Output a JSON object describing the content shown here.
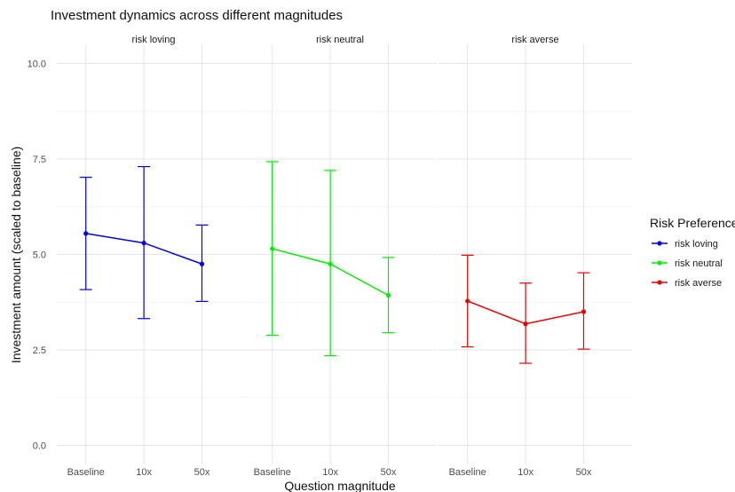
{
  "chart_data": {
    "type": "line",
    "title": "Investment dynamics across different magnitudes",
    "xlabel": "Question magnitude",
    "ylabel": "Investment amount (scaled to baseline)",
    "categories": [
      "Baseline",
      "10x",
      "50x"
    ],
    "ylim": [
      -0.5,
      10.5
    ],
    "yticks": [
      0.0,
      2.5,
      5.0,
      7.5,
      10.0
    ],
    "ytick_labels": [
      "0.0",
      "2.5",
      "5.0",
      "7.5",
      "10.0"
    ],
    "grid": true,
    "legend": {
      "title": "Risk Preference",
      "placement": "right"
    },
    "facets": [
      "risk loving",
      "risk neutral",
      "risk averse"
    ],
    "series": [
      {
        "name": "risk loving",
        "color": "#0000ee",
        "values": [
          5.55,
          5.3,
          4.75
        ],
        "lower": [
          4.08,
          3.32,
          3.77
        ],
        "upper": [
          7.02,
          7.3,
          5.77
        ]
      },
      {
        "name": "risk neutral",
        "color": "#00ee00",
        "values": [
          5.15,
          4.75,
          3.93
        ],
        "lower": [
          2.88,
          2.35,
          2.95
        ],
        "upper": [
          7.43,
          7.2,
          4.92
        ]
      },
      {
        "name": "risk averse",
        "color": "#ee0000",
        "values": [
          3.78,
          3.18,
          3.5
        ],
        "lower": [
          2.58,
          2.15,
          2.52
        ],
        "upper": [
          4.98,
          4.25,
          4.52
        ]
      }
    ]
  }
}
